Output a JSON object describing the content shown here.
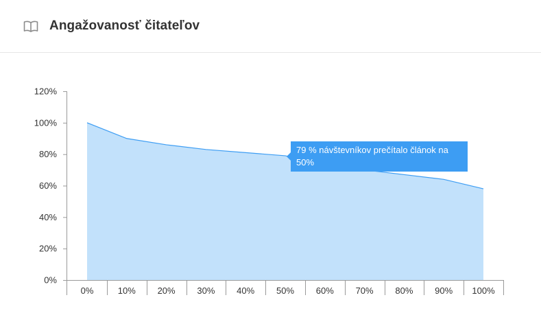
{
  "header": {
    "icon": "book-open-icon",
    "title": "Angažovanosť čitateľov"
  },
  "colors": {
    "area_fill": "#c2e1fb",
    "line": "#3d9df3",
    "tooltip_bg": "#3d9df3",
    "axis": "#999999"
  },
  "tooltip": {
    "text": "79 % návštevníkov prečítalo článok na 50%"
  },
  "chart_data": {
    "type": "area",
    "x": [
      0,
      10,
      20,
      30,
      40,
      50,
      60,
      70,
      80,
      90,
      100
    ],
    "categories": [
      "0%",
      "10%",
      "20%",
      "30%",
      "40%",
      "50%",
      "60%",
      "70%",
      "80%",
      "90%",
      "100%"
    ],
    "values": [
      100,
      90,
      86,
      83,
      81,
      79,
      74,
      70,
      67,
      64,
      58
    ],
    "y_ticks": [
      "0%",
      "20%",
      "40%",
      "60%",
      "80%",
      "100%",
      "120%"
    ],
    "ylim": [
      0,
      120
    ],
    "xlabel": "",
    "ylabel": "",
    "title": "",
    "grid": false,
    "legend": "none"
  }
}
